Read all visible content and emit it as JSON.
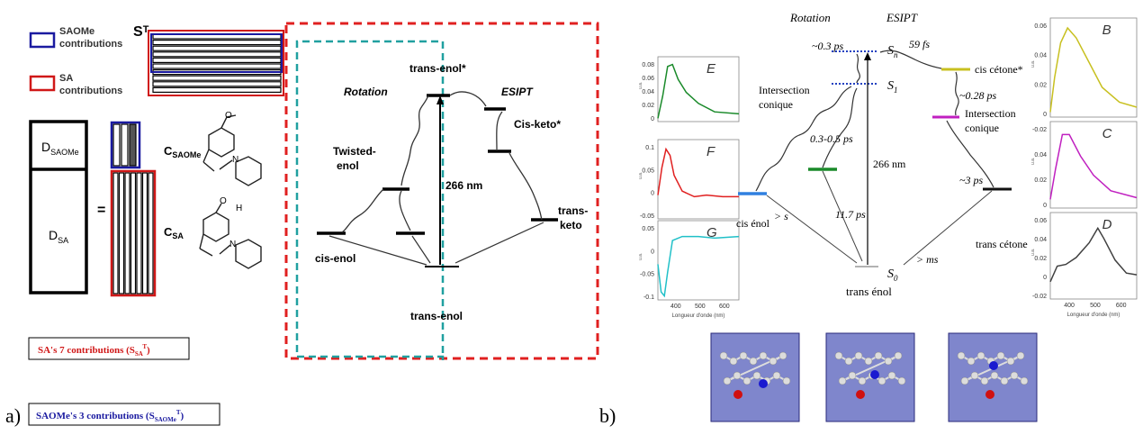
{
  "panel_a": {
    "label": "a)",
    "legend": {
      "saome": "SAOMe contributions",
      "sa": "SA contributions",
      "st": "Sᵀ",
      "saome_color": "#1a1aa0",
      "sa_color": "#d01818"
    },
    "matrix": {
      "d_saome": "D",
      "d_saome_sub": "SAOMe",
      "d_sa": "D",
      "d_sa_sub": "SA",
      "equals": "="
    },
    "c_saome": "C",
    "c_saome_sub": "SAOMe",
    "c_sa": "C",
    "c_sa_sub": "SA",
    "molecules": {
      "methoxy_label": "O",
      "hydroxy_label": "OH",
      "imine_label": "N"
    },
    "boxes": {
      "sa_text": "SA's 7 contributions (S",
      "sa_sub": "SA",
      "sa_sup": "T",
      "saome_text": "SAOMe's 3 contributions (S",
      "saome_sub": "SAOMe",
      "saome_sup": "T"
    },
    "scheme": {
      "trans_enol_star": "trans-enol*",
      "rotation": "Rotation",
      "esipt": "ESIPT",
      "cis_keto_star": "Cis-keto*",
      "twisted_enol": "Twisted-\nenol",
      "nm": "266 nm",
      "trans_keto": "trans-\nketo",
      "cis_enol": "cis-enol",
      "trans_enol": "trans-enol",
      "red_dash": "#e02020",
      "teal_dash": "#20a0a0"
    }
  },
  "panel_b": {
    "label": "b)",
    "header_rotation": "Rotation",
    "header_esipt": "ESIPT",
    "t1": "~0.3 ps",
    "t2": "59 fs",
    "sn": "S",
    "sn_sub": "n",
    "s1": "S",
    "s1_sub": "1",
    "s0": "S",
    "s0_sub": "0",
    "cis_cetone": "cis cétone*",
    "t3": "~0.28 ps",
    "intersection_left": "Intersection\nconique",
    "intersection_right": "Intersection\nconique",
    "t4": "0.3-0.5 ps",
    "nm": "266 nm",
    "t5": "~3 ps",
    "cis_enol": "cis énol",
    "gt_s": "> s",
    "t6": "11.7 ps",
    "trans_cetone": "trans cétone",
    "gt_ms": "> ms",
    "trans_enol": "trans énol",
    "left_spectra": {
      "letters": [
        "E",
        "F",
        "G"
      ],
      "colors": [
        "#1a8a2a",
        "#e02020",
        "#20c0c8"
      ],
      "yticks_e": [
        "0.08",
        "0.06",
        "0.04",
        "0.02",
        "0"
      ],
      "yticks_f": [
        "0.1",
        "0.05",
        "0",
        "-0.05"
      ],
      "yticks_g": [
        "0.05",
        "0",
        "-0.05",
        "-0.1"
      ],
      "xticks": [
        "400",
        "500",
        "600"
      ],
      "xlabel": "Longueur d'onde (nm)",
      "ylabel": "u.a."
    },
    "right_spectra": {
      "letters": [
        "B",
        "C",
        "D"
      ],
      "colors": [
        "#c8c020",
        "#c020c0",
        "#404040"
      ],
      "yticks_b": [
        "0.06",
        "0.04",
        "0.02",
        "0"
      ],
      "yticks_c": [
        "-0.02",
        "0.04",
        "0.02",
        "0"
      ],
      "yticks_d": [
        "0.06",
        "0.04",
        "0.02",
        "0",
        "-0.02"
      ],
      "xticks": [
        "400",
        "500",
        "600"
      ],
      "xlabel": "Longueur d'onde (nm)",
      "ylabel": "u.a."
    },
    "level_colors": {
      "blue_line": "#3080e0",
      "green_line": "#1a8a2a",
      "yellow_line": "#c8c020",
      "magenta_line": "#c020c0",
      "black_line": "#111111",
      "sn_dotted": "#2040c0"
    },
    "molecule_panel_color": "#7f86cc"
  }
}
